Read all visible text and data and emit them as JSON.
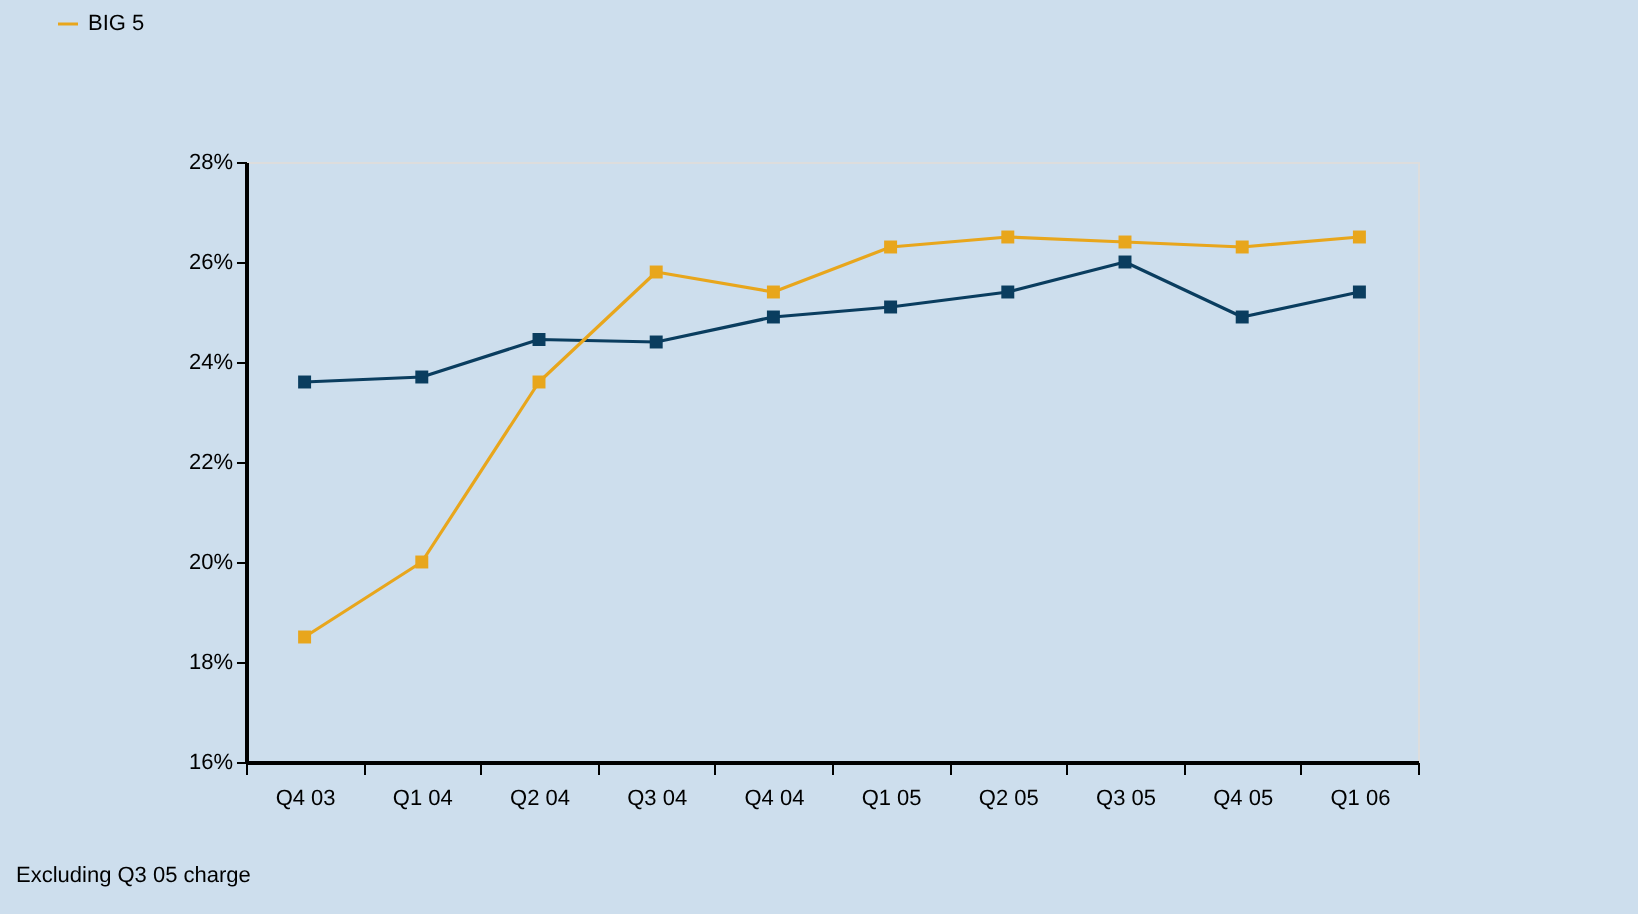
{
  "chart_data": {
    "type": "line",
    "categories": [
      "Q4 03",
      "Q1 04",
      "Q2 04",
      "Q3 04",
      "Q4 04",
      "Q1 05",
      "Q2 05",
      "Q3 05",
      "Q4 05",
      "Q1 06"
    ],
    "series": [
      {
        "color": "#0a3d5f",
        "values": [
          23.6,
          23.7,
          24.45,
          24.4,
          24.9,
          25.1,
          25.4,
          26.0,
          24.9,
          25.4
        ]
      },
      {
        "name": "BIG 5",
        "color": "#e8a61c",
        "values": [
          18.5,
          20.0,
          23.6,
          25.8,
          25.4,
          26.3,
          26.5,
          26.4,
          26.3,
          26.5
        ]
      }
    ],
    "ylim": [
      16,
      28
    ],
    "yticks": [
      {
        "value": 16,
        "label": "16%"
      },
      {
        "value": 18,
        "label": "18%"
      },
      {
        "value": 20,
        "label": "20%"
      },
      {
        "value": 22,
        "label": "22%"
      },
      {
        "value": 24,
        "label": "24%"
      },
      {
        "value": 26,
        "label": "26%"
      },
      {
        "value": 28,
        "label": "28%"
      }
    ],
    "marker": "square",
    "line_style": "solid",
    "grid": false,
    "legend": "top left",
    "annotations": [
      "Excluding Q3 05 charge"
    ]
  }
}
